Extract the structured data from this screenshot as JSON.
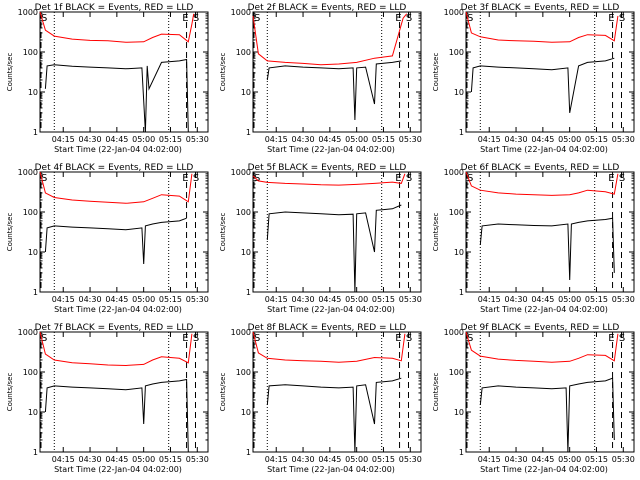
{
  "chart_data": [
    {
      "type": "line",
      "title": "Det 1f BLACK = Events, RED = LLD",
      "xlabel": "Start Time (22-Jan-04 04:02:00)",
      "ylabel": "Counts/sec",
      "y_scale": "log",
      "ylim": [
        1,
        1000
      ],
      "xticks": [
        "04:15",
        "04:30",
        "04:45",
        "05:00",
        "05:15",
        "05:30"
      ],
      "yticks": [
        "1",
        "10",
        "100",
        "1000"
      ],
      "markers": [
        "S",
        "E",
        "S"
      ],
      "series": [
        {
          "name": "LLD",
          "color": "#ff0000",
          "x": [
            "04:02",
            "04:05",
            "04:10",
            "04:20",
            "04:30",
            "04:40",
            "04:50",
            "05:00",
            "05:05",
            "05:10",
            "05:20",
            "05:25",
            "05:27",
            "05:28"
          ],
          "y": [
            1000,
            350,
            250,
            210,
            195,
            190,
            175,
            180,
            230,
            280,
            270,
            180,
            500,
            900
          ]
        },
        {
          "name": "Events",
          "color": "#000000",
          "x": [
            "04:05",
            "04:06",
            "04:10",
            "04:20",
            "04:30",
            "04:40",
            "04:50",
            "04:59",
            "05:01",
            "05:02",
            "05:03",
            "05:10",
            "05:20",
            "05:24",
            "05:25"
          ],
          "y": [
            12,
            45,
            48,
            44,
            42,
            40,
            38,
            40,
            1,
            45,
            12,
            55,
            60,
            65,
            1
          ]
        }
      ]
    },
    {
      "type": "line",
      "title": "Det 2f BLACK = Events, RED = LLD",
      "xlabel": "Start Time (22-Jan-04 04:02:00)",
      "ylabel": "Counts/sec",
      "y_scale": "log",
      "ylim": [
        1,
        1000
      ],
      "xticks": [
        "04:15",
        "04:30",
        "04:45",
        "05:00",
        "05:15",
        "05:30"
      ],
      "yticks": [
        "1",
        "10",
        "100",
        "1000"
      ],
      "markers": [
        "S",
        "E",
        "S"
      ],
      "series": [
        {
          "name": "LLD",
          "color": "#ff0000",
          "x": [
            "04:02",
            "04:05",
            "04:10",
            "04:20",
            "04:30",
            "04:40",
            "04:50",
            "05:00",
            "05:10",
            "05:20",
            "05:26",
            "05:28"
          ],
          "y": [
            800,
            90,
            60,
            55,
            52,
            48,
            50,
            55,
            70,
            80,
            700,
            900
          ]
        },
        {
          "name": "Events",
          "color": "#000000",
          "x": [
            "04:10",
            "04:11",
            "04:20",
            "04:30",
            "04:40",
            "04:50",
            "04:58",
            "04:59",
            "05:00",
            "05:05",
            "05:10",
            "05:11",
            "05:20",
            "05:25"
          ],
          "y": [
            20,
            40,
            45,
            42,
            40,
            38,
            40,
            2,
            40,
            42,
            5,
            50,
            55,
            60
          ]
        }
      ]
    },
    {
      "type": "line",
      "title": "Det 3f BLACK = Events, RED = LLD",
      "xlabel": "Start Time (22-Jan-04 04:02:00)",
      "ylabel": "Counts/sec",
      "y_scale": "log",
      "ylim": [
        1,
        1000
      ],
      "xticks": [
        "04:15",
        "04:30",
        "04:45",
        "05:00",
        "05:15",
        "05:30"
      ],
      "yticks": [
        "1",
        "10",
        "100",
        "1000"
      ],
      "markers": [
        "S",
        "E",
        "S"
      ],
      "series": [
        {
          "name": "LLD",
          "color": "#ff0000",
          "x": [
            "04:02",
            "04:05",
            "04:10",
            "04:20",
            "04:30",
            "04:40",
            "04:50",
            "05:00",
            "05:05",
            "05:10",
            "05:20",
            "05:25",
            "05:27"
          ],
          "y": [
            1000,
            300,
            240,
            200,
            190,
            185,
            175,
            180,
            230,
            270,
            260,
            190,
            800
          ]
        },
        {
          "name": "Events",
          "color": "#000000",
          "x": [
            "04:05",
            "04:06",
            "04:10",
            "04:20",
            "04:30",
            "04:40",
            "04:50",
            "04:59",
            "05:00",
            "05:05",
            "05:10",
            "05:20",
            "05:25"
          ],
          "y": [
            10,
            40,
            45,
            42,
            40,
            38,
            36,
            40,
            3,
            45,
            55,
            60,
            70
          ]
        }
      ]
    },
    {
      "type": "line",
      "title": "Det 4f BLACK = Events, RED = LLD",
      "xlabel": "Start Time (22-Jan-04 04:02:00)",
      "ylabel": "Counts/sec",
      "y_scale": "log",
      "ylim": [
        1,
        1000
      ],
      "xticks": [
        "04:15",
        "04:30",
        "04:45",
        "05:00",
        "05:15",
        "05:30"
      ],
      "yticks": [
        "1",
        "10",
        "100",
        "1000"
      ],
      "markers": [
        "S",
        "E",
        "S"
      ],
      "series": [
        {
          "name": "LLD",
          "color": "#ff0000",
          "x": [
            "04:02",
            "04:05",
            "04:10",
            "04:20",
            "04:30",
            "04:40",
            "04:50",
            "05:00",
            "05:05",
            "05:10",
            "05:20",
            "05:25",
            "05:27"
          ],
          "y": [
            1000,
            300,
            230,
            200,
            185,
            175,
            165,
            180,
            220,
            270,
            250,
            180,
            900
          ]
        },
        {
          "name": "Events",
          "color": "#000000",
          "x": [
            "04:05",
            "04:06",
            "04:10",
            "04:20",
            "04:30",
            "04:40",
            "04:50",
            "04:59",
            "05:00",
            "05:01",
            "05:05",
            "05:10",
            "05:20",
            "05:24"
          ],
          "y": [
            10,
            40,
            45,
            42,
            40,
            38,
            36,
            40,
            5,
            45,
            50,
            55,
            60,
            70
          ]
        }
      ]
    },
    {
      "type": "line",
      "title": "Det 5f BLACK = Events, RED = LLD",
      "xlabel": "Start Time (22-Jan-04 04:02:00)",
      "ylabel": "Counts/sec",
      "y_scale": "log",
      "ylim": [
        1,
        1000
      ],
      "xticks": [
        "04:15",
        "04:30",
        "04:45",
        "05:00",
        "05:15",
        "05:30"
      ],
      "yticks": [
        "1",
        "10",
        "100",
        "1000"
      ],
      "markers": [
        "S",
        "E",
        "S"
      ],
      "series": [
        {
          "name": "LLD",
          "color": "#ff0000",
          "x": [
            "04:02",
            "04:05",
            "04:10",
            "04:20",
            "04:30",
            "04:40",
            "04:50",
            "05:00",
            "05:10",
            "05:20",
            "05:25",
            "05:27"
          ],
          "y": [
            800,
            600,
            550,
            520,
            500,
            480,
            470,
            490,
            520,
            560,
            520,
            900
          ]
        },
        {
          "name": "Events",
          "color": "#000000",
          "x": [
            "04:10",
            "04:11",
            "04:20",
            "04:30",
            "04:40",
            "04:50",
            "04:58",
            "04:59",
            "05:00",
            "05:05",
            "05:10",
            "05:11",
            "05:20",
            "05:25"
          ],
          "y": [
            20,
            90,
            100,
            95,
            90,
            85,
            88,
            1,
            90,
            95,
            10,
            110,
            120,
            150
          ]
        }
      ]
    },
    {
      "type": "line",
      "title": "Det 6f BLACK = Events, RED = LLD",
      "xlabel": "Start Time (22-Jan-04 04:02:00)",
      "ylabel": "Counts/sec",
      "y_scale": "log",
      "ylim": [
        1,
        1000
      ],
      "xticks": [
        "04:15",
        "04:30",
        "04:45",
        "05:00",
        "05:15",
        "05:30"
      ],
      "yticks": [
        "1",
        "10",
        "100",
        "1000"
      ],
      "markers": [
        "S",
        "E",
        "S"
      ],
      "series": [
        {
          "name": "LLD",
          "color": "#ff0000",
          "x": [
            "04:02",
            "04:05",
            "04:10",
            "04:20",
            "04:30",
            "04:40",
            "04:50",
            "05:00",
            "05:05",
            "05:10",
            "05:20",
            "05:25",
            "05:27"
          ],
          "y": [
            1000,
            450,
            350,
            300,
            280,
            270,
            260,
            270,
            300,
            350,
            320,
            280,
            900
          ]
        },
        {
          "name": "Events",
          "color": "#000000",
          "x": [
            "04:10",
            "04:11",
            "04:20",
            "04:30",
            "04:40",
            "04:50",
            "04:59",
            "05:00",
            "05:01",
            "05:05",
            "05:10",
            "05:20",
            "05:24",
            "05:25"
          ],
          "y": [
            15,
            45,
            50,
            48,
            46,
            45,
            50,
            2,
            50,
            55,
            60,
            65,
            70,
            3
          ]
        }
      ]
    },
    {
      "type": "line",
      "title": "Det 7f BLACK = Events, RED = LLD",
      "xlabel": "Start Time (22-Jan-04 04:02:00)",
      "ylabel": "Counts/sec",
      "y_scale": "log",
      "ylim": [
        1,
        1000
      ],
      "xticks": [
        "04:15",
        "04:30",
        "04:45",
        "05:00",
        "05:15",
        "05:30"
      ],
      "yticks": [
        "1",
        "10",
        "100",
        "1000"
      ],
      "markers": [
        "S",
        "E",
        "S"
      ],
      "series": [
        {
          "name": "LLD",
          "color": "#ff0000",
          "x": [
            "04:02",
            "04:05",
            "04:10",
            "04:20",
            "04:30",
            "04:40",
            "04:50",
            "05:00",
            "05:05",
            "05:10",
            "05:20",
            "05:25",
            "05:27"
          ],
          "y": [
            1000,
            280,
            200,
            170,
            160,
            150,
            145,
            155,
            200,
            240,
            220,
            170,
            900
          ]
        },
        {
          "name": "Events",
          "color": "#000000",
          "x": [
            "04:05",
            "04:06",
            "04:10",
            "04:20",
            "04:30",
            "04:40",
            "04:50",
            "04:59",
            "05:00",
            "05:01",
            "05:05",
            "05:10",
            "05:20",
            "05:24",
            "05:25"
          ],
          "y": [
            10,
            40,
            45,
            42,
            40,
            38,
            36,
            40,
            5,
            45,
            50,
            55,
            60,
            65,
            1
          ]
        }
      ]
    },
    {
      "type": "line",
      "title": "Det 8f BLACK = Events, RED = LLD",
      "xlabel": "Start Time (22-Jan-04 04:02:00)",
      "ylabel": "Counts/sec",
      "y_scale": "log",
      "ylim": [
        1,
        1000
      ],
      "xticks": [
        "04:15",
        "04:30",
        "04:45",
        "05:00",
        "05:15",
        "05:30"
      ],
      "yticks": [
        "1",
        "10",
        "100",
        "1000"
      ],
      "markers": [
        "S",
        "E",
        "S"
      ],
      "series": [
        {
          "name": "LLD",
          "color": "#ff0000",
          "x": [
            "04:02",
            "04:05",
            "04:10",
            "04:20",
            "04:30",
            "04:40",
            "04:50",
            "05:00",
            "05:10",
            "05:20",
            "05:25",
            "05:27"
          ],
          "y": [
            1000,
            300,
            220,
            200,
            190,
            185,
            175,
            185,
            230,
            220,
            190,
            900
          ]
        },
        {
          "name": "Events",
          "color": "#000000",
          "x": [
            "04:10",
            "04:11",
            "04:20",
            "04:30",
            "04:40",
            "04:50",
            "04:58",
            "04:59",
            "05:00",
            "05:05",
            "05:10",
            "05:11",
            "05:20",
            "05:25"
          ],
          "y": [
            15,
            45,
            48,
            45,
            42,
            40,
            42,
            1,
            45,
            48,
            5,
            55,
            60,
            70
          ]
        }
      ]
    },
    {
      "type": "line",
      "title": "Det 9f BLACK = Events, RED = LLD",
      "xlabel": "Start Time (22-Jan-04 04:02:00)",
      "ylabel": "Counts/sec",
      "y_scale": "log",
      "ylim": [
        1,
        1000
      ],
      "xticks": [
        "04:15",
        "04:30",
        "04:45",
        "05:00",
        "05:15",
        "05:30"
      ],
      "yticks": [
        "1",
        "10",
        "100",
        "1000"
      ],
      "markers": [
        "S",
        "E",
        "S"
      ],
      "series": [
        {
          "name": "LLD",
          "color": "#ff0000",
          "x": [
            "04:02",
            "04:05",
            "04:10",
            "04:20",
            "04:30",
            "04:40",
            "04:50",
            "05:00",
            "05:05",
            "05:10",
            "05:20",
            "05:25",
            "05:27"
          ],
          "y": [
            1000,
            350,
            250,
            210,
            195,
            185,
            175,
            185,
            220,
            270,
            260,
            190,
            900
          ]
        },
        {
          "name": "Events",
          "color": "#000000",
          "x": [
            "04:10",
            "04:11",
            "04:20",
            "04:30",
            "04:40",
            "04:50",
            "04:58",
            "04:59",
            "05:00",
            "05:05",
            "05:10",
            "05:20",
            "05:24",
            "05:25"
          ],
          "y": [
            15,
            40,
            45,
            42,
            40,
            38,
            40,
            1,
            45,
            50,
            55,
            60,
            70,
            2
          ]
        }
      ]
    }
  ]
}
